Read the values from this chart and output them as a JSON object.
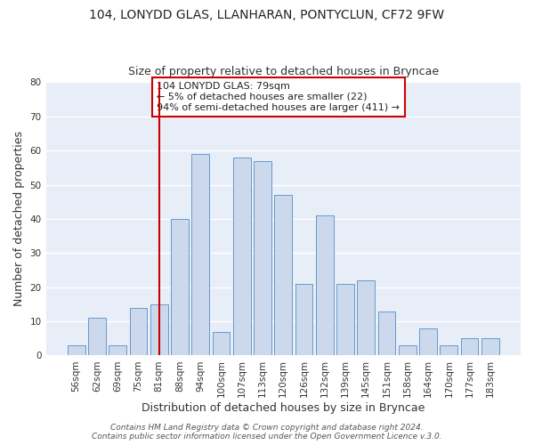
{
  "title": "104, LONYDD GLAS, LLANHARAN, PONTYCLUN, CF72 9FW",
  "subtitle": "Size of property relative to detached houses in Bryncae",
  "xlabel": "Distribution of detached houses by size in Bryncae",
  "ylabel": "Number of detached properties",
  "bar_labels": [
    "56sqm",
    "62sqm",
    "69sqm",
    "75sqm",
    "81sqm",
    "88sqm",
    "94sqm",
    "100sqm",
    "107sqm",
    "113sqm",
    "120sqm",
    "126sqm",
    "132sqm",
    "139sqm",
    "145sqm",
    "151sqm",
    "158sqm",
    "164sqm",
    "170sqm",
    "177sqm",
    "183sqm"
  ],
  "bar_values": [
    3,
    11,
    3,
    14,
    15,
    40,
    59,
    7,
    58,
    57,
    47,
    21,
    41,
    21,
    22,
    13,
    3,
    8,
    3,
    5,
    5
  ],
  "bar_color": "#ccd9ed",
  "bar_edge_color": "#6699cc",
  "vline_x_index": 4,
  "vline_color": "#cc0000",
  "annotation_text": "104 LONYDD GLAS: 79sqm\n← 5% of detached houses are smaller (22)\n94% of semi-detached houses are larger (411) →",
  "annotation_box_edgecolor": "#cc0000",
  "annotation_box_facecolor": "#ffffff",
  "ylim": [
    0,
    80
  ],
  "yticks": [
    0,
    10,
    20,
    30,
    40,
    50,
    60,
    70,
    80
  ],
  "footer_text": "Contains HM Land Registry data © Crown copyright and database right 2024.\nContains public sector information licensed under the Open Government Licence v.3.0.",
  "plot_bg_color": "#e8eef7",
  "fig_bg_color": "#ffffff",
  "grid_color": "#ffffff",
  "title_fontsize": 10,
  "subtitle_fontsize": 9,
  "axis_label_fontsize": 9,
  "tick_fontsize": 7.5,
  "annotation_fontsize": 8,
  "footer_fontsize": 6.5
}
